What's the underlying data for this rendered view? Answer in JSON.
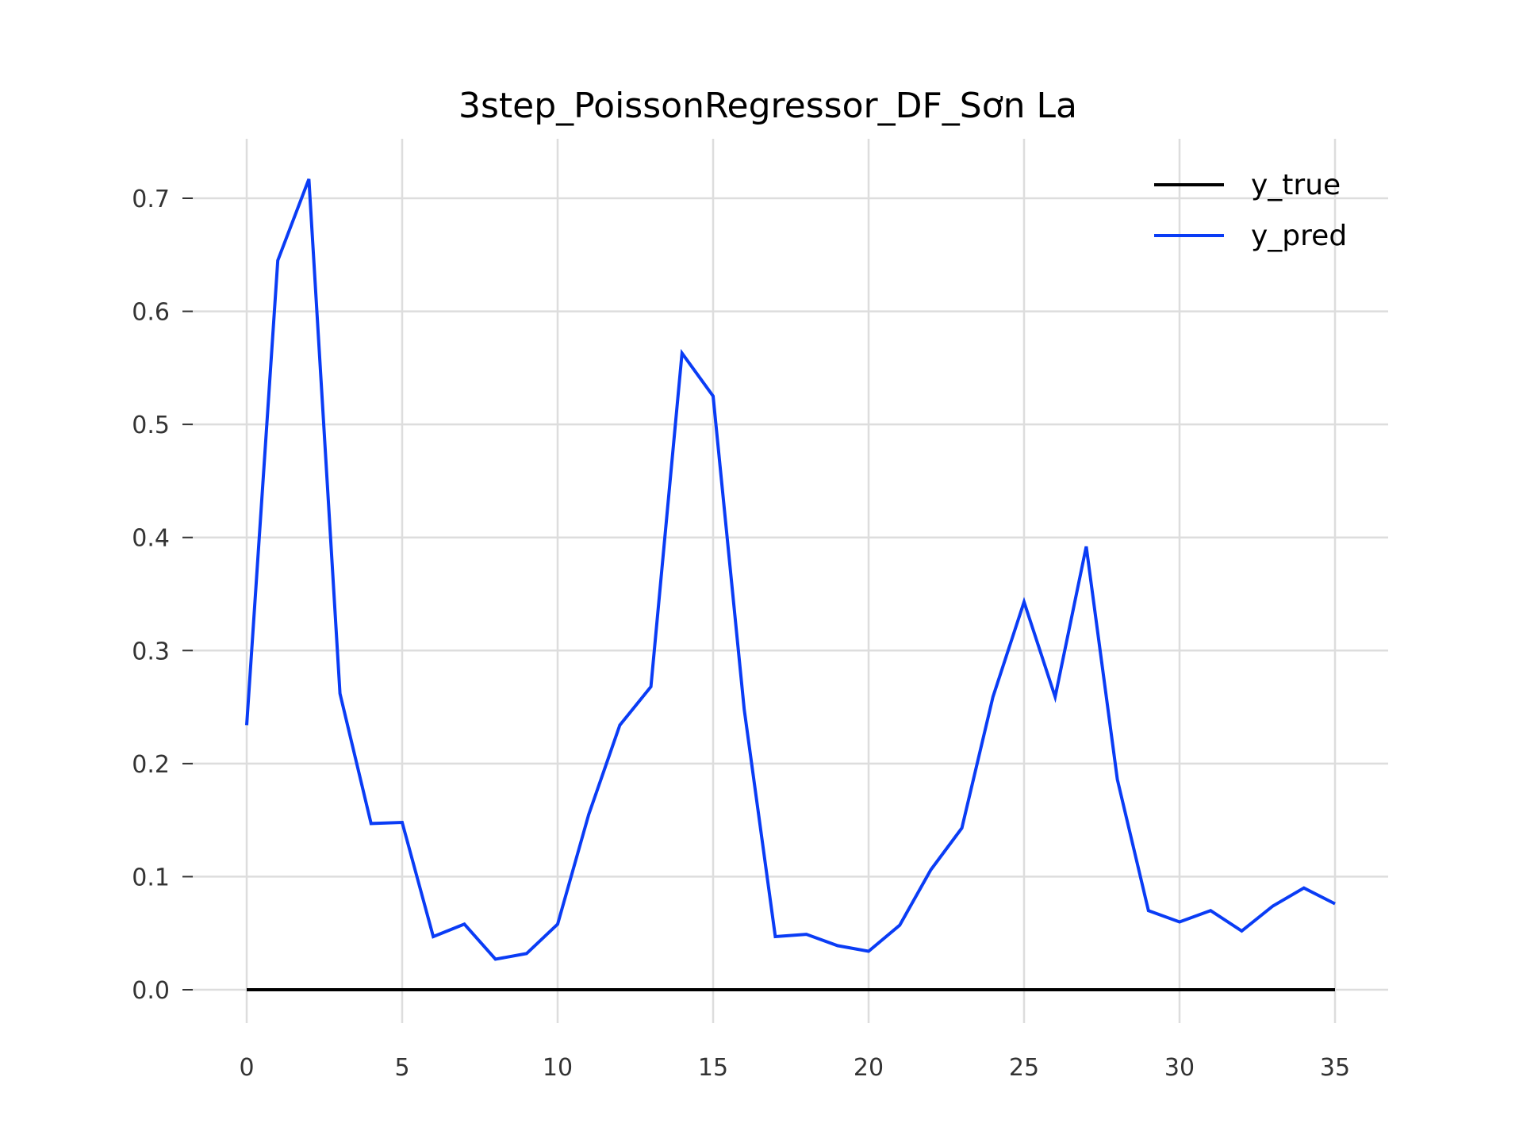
{
  "chart_data": {
    "type": "line",
    "title": "3step_PoissonRegressor_DF_Sơn La",
    "xlabel": "",
    "ylabel": "",
    "xlim": [
      0,
      35
    ],
    "ylim": [
      0.0,
      0.7
    ],
    "x_ticks": [
      0,
      5,
      10,
      15,
      20,
      25,
      30,
      35
    ],
    "y_ticks": [
      0.0,
      0.1,
      0.2,
      0.3,
      0.4,
      0.5,
      0.6,
      0.7
    ],
    "x_tick_labels": [
      "0",
      "5",
      "10",
      "15",
      "20",
      "25",
      "30",
      "35"
    ],
    "y_tick_labels": [
      "0.0",
      "0.1",
      "0.2",
      "0.3",
      "0.4",
      "0.5",
      "0.6",
      "0.7"
    ],
    "grid": true,
    "legend_position": "top-right",
    "x": [
      0,
      1,
      2,
      3,
      4,
      5,
      6,
      7,
      8,
      9,
      10,
      11,
      12,
      13,
      14,
      15,
      16,
      17,
      18,
      19,
      20,
      21,
      22,
      23,
      24,
      25,
      26,
      27,
      28,
      29,
      30,
      31,
      32,
      33,
      34,
      35
    ],
    "series": [
      {
        "name": "y_true",
        "color": "#000000",
        "values": [
          0,
          0,
          0,
          0,
          0,
          0,
          0,
          0,
          0,
          0,
          0,
          0,
          0,
          0,
          0,
          0,
          0,
          0,
          0,
          0,
          0,
          0,
          0,
          0,
          0,
          0,
          0,
          0,
          0,
          0,
          0,
          0,
          0,
          0,
          0,
          0
        ]
      },
      {
        "name": "y_pred",
        "color": "#0a3cf5",
        "values": [
          0.234,
          0.645,
          0.717,
          0.262,
          0.147,
          0.148,
          0.047,
          0.058,
          0.027,
          0.032,
          0.058,
          0.155,
          0.234,
          0.268,
          0.563,
          0.525,
          0.248,
          0.047,
          0.049,
          0.039,
          0.034,
          0.057,
          0.106,
          0.143,
          0.259,
          0.343,
          0.259,
          0.392,
          0.186,
          0.07,
          0.06,
          0.07,
          0.052,
          0.074,
          0.09,
          0.076
        ]
      }
    ]
  }
}
